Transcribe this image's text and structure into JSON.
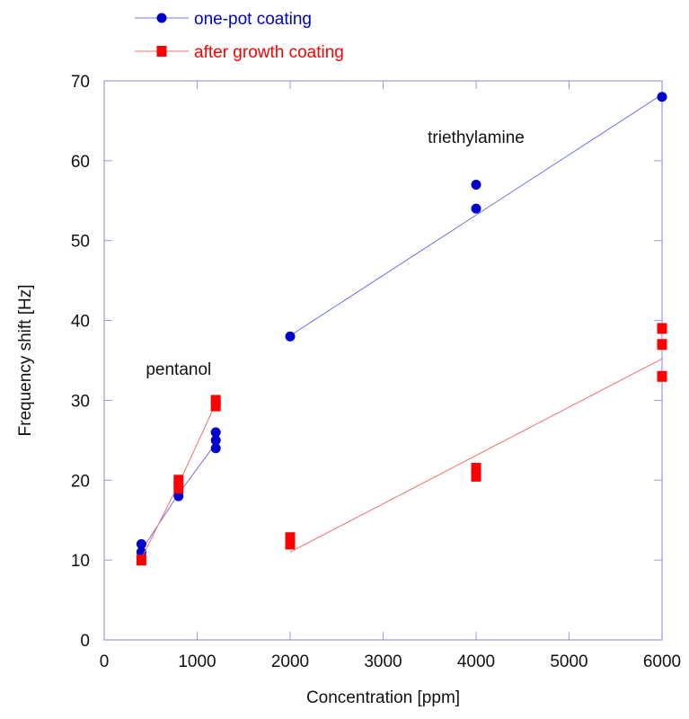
{
  "chart_data": {
    "type": "scatter",
    "title": "",
    "xlabel": "Concentration [ppm]",
    "ylabel": "Frequency shift [Hz]",
    "xlim": [
      0,
      6000
    ],
    "ylim": [
      0,
      70
    ],
    "xticks": [
      0,
      1000,
      2000,
      3000,
      4000,
      5000,
      6000
    ],
    "yticks": [
      0,
      10,
      20,
      30,
      40,
      50,
      60,
      70
    ],
    "grid": false,
    "legend_position": "top-left, above plot",
    "annotations": [
      {
        "text": "pentanol",
        "x": 800,
        "y": 34
      },
      {
        "text": "triethylamine",
        "x": 4000,
        "y": 63
      }
    ],
    "series": [
      {
        "name": "one-pot coating",
        "color": "#0000cc",
        "marker": "circle",
        "points": [
          [
            400,
            12
          ],
          [
            400,
            11
          ],
          [
            800,
            18
          ],
          [
            1200,
            24
          ],
          [
            1200,
            25
          ],
          [
            1200,
            26
          ],
          [
            2000,
            38
          ],
          [
            4000,
            54
          ],
          [
            4000,
            57
          ],
          [
            6000,
            68
          ]
        ],
        "lines": [
          [
            [
              400,
              11.2
            ],
            [
              800,
              18.3
            ],
            [
              1200,
              24.6
            ]
          ],
          [
            [
              2000,
              38.1
            ],
            [
              6000,
              68.3
            ]
          ]
        ]
      },
      {
        "name": "after growth coating",
        "color": "#ff0000",
        "marker": "square",
        "points": [
          [
            400,
            10
          ],
          [
            800,
            19
          ],
          [
            800,
            20
          ],
          [
            1200,
            29.3
          ],
          [
            1200,
            30
          ],
          [
            2000,
            12
          ],
          [
            2000,
            12.8
          ],
          [
            4000,
            20.5
          ],
          [
            4000,
            21.5
          ],
          [
            6000,
            33
          ],
          [
            6000,
            37
          ],
          [
            6000,
            39
          ]
        ],
        "lines": [
          [
            [
              400,
              10.2
            ],
            [
              800,
              19.5
            ],
            [
              1200,
              29.6
            ]
          ],
          [
            [
              2000,
              11
            ],
            [
              6000,
              35.2
            ]
          ]
        ]
      }
    ]
  }
}
